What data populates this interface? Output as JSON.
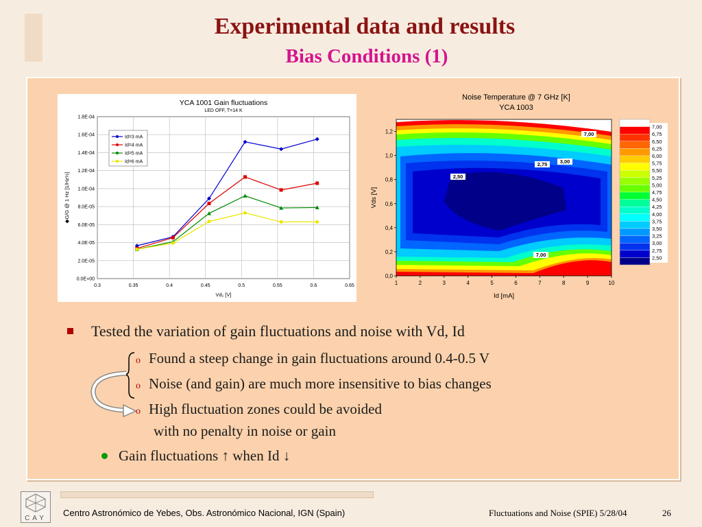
{
  "slide": {
    "title": "Experimental data and results",
    "subtitle": "Bias Conditions (1)"
  },
  "bullets": {
    "main": "Tested the variation of gain fluctuations and noise with Vd, Id",
    "subs": [
      "Found a steep change in gain fluctuations around 0.4-0.5 V",
      "Noise (and gain) are much more insensitive to bias changes",
      "High fluctuation zones could be avoided",
      "with no penalty in noise or gain"
    ],
    "sub_marker": "o",
    "secondary": "Gain fluctuations ↑ when  Id ↓"
  },
  "footer": {
    "left": "Centro Astronómico de Yebes, Obs. Astronómico Nacional, IGN (Spain)",
    "right": "Fluctuations and Noise (SPIE)  5/28/04",
    "page": "26",
    "logo_text": "CAY"
  },
  "chart_data": [
    {
      "type": "line",
      "title": "YCA 1001 Gain fluctuations",
      "subtitle": "LED OFF,  T=14 K",
      "xlabel": "Vd₁ [V]",
      "ylabel": "◆G/G @ 1 Hz [1/Hz½]",
      "x": [
        0.355,
        0.405,
        0.455,
        0.505,
        0.555,
        0.605
      ],
      "xlim": [
        0.3,
        0.65
      ],
      "xticks": [
        "0.3",
        "0.35",
        "0.4",
        "0.45",
        "0.5",
        "0.55",
        "0.6",
        "0.65"
      ],
      "ylim": [
        0,
        0.00018
      ],
      "yticks": [
        "0.0E+00",
        "2.0E-05",
        "4.0E-05",
        "6.0E-05",
        "8.0E-05",
        "1.0E-04",
        "1.2E-04",
        "1.4E-04",
        "1.6E-04",
        "1.8E-04"
      ],
      "legend_position": "top-left",
      "grid": true,
      "series": [
        {
          "name": "Id=3 mA",
          "color": "#0000cc",
          "marker": "diamond",
          "values": [
            3.65e-05,
            4.65e-05,
            8.9e-05,
            0.000152,
            0.000144,
            0.000155
          ]
        },
        {
          "name": "Id=4 mA",
          "color": "#dd0000",
          "marker": "square",
          "values": [
            3.35e-05,
            4.55e-05,
            8.35e-05,
            0.000113,
            9.85e-05,
            0.000106
          ]
        },
        {
          "name": "Id=5 mA",
          "color": "#008800",
          "marker": "triangle",
          "values": [
            3.25e-05,
            4.1e-05,
            7.25e-05,
            9.2e-05,
            7.85e-05,
            7.9e-05
          ]
        },
        {
          "name": "Id=6 mA",
          "color": "#e8e800",
          "marker": "circle",
          "values": [
            3.25e-05,
            3.95e-05,
            6.35e-05,
            7.3e-05,
            6.3e-05,
            6.3e-05
          ]
        }
      ]
    },
    {
      "type": "heatmap",
      "title": "Noise Temperature @ 7 GHz [K]",
      "subtitle": "YCA 1003",
      "xlabel": "Id [mA]",
      "ylabel": "Vds [V]",
      "xlim": [
        1,
        10
      ],
      "ylim": [
        0,
        1.3
      ],
      "xticks": [
        "1",
        "2",
        "3",
        "4",
        "5",
        "6",
        "7",
        "8",
        "9",
        "10"
      ],
      "yticks": [
        "0,0",
        "0,2",
        "0,4",
        "0,6",
        "0,8",
        "1,0",
        "1,2"
      ],
      "contour_labels": [
        "7,00",
        "3,00",
        "2,75",
        "2,50",
        "7,00"
      ],
      "colorbar": [
        {
          "label": "7,00",
          "color": "#ffffff"
        },
        {
          "label": "6,75",
          "color": "#ff0000"
        },
        {
          "label": "6,50",
          "color": "#ff3300"
        },
        {
          "label": "6,25",
          "color": "#ff6600"
        },
        {
          "label": "6,00",
          "color": "#ff9900"
        },
        {
          "label": "5,75",
          "color": "#ffcc00"
        },
        {
          "label": "5,50",
          "color": "#ffff00"
        },
        {
          "label": "5,25",
          "color": "#ccff00"
        },
        {
          "label": "5,00",
          "color": "#99ff00"
        },
        {
          "label": "4,75",
          "color": "#66ff00"
        },
        {
          "label": "4,50",
          "color": "#00ff33"
        },
        {
          "label": "4,25",
          "color": "#00ff99"
        },
        {
          "label": "4,00",
          "color": "#00ffcc"
        },
        {
          "label": "3,75",
          "color": "#00ffff"
        },
        {
          "label": "3,50",
          "color": "#00ccff"
        },
        {
          "label": "3,25",
          "color": "#0099ff"
        },
        {
          "label": "3,00",
          "color": "#0066ff"
        },
        {
          "label": "2,75",
          "color": "#0033ee"
        },
        {
          "label": "2,50",
          "color": "#0000cc"
        },
        {
          "label": "",
          "color": "#000088"
        }
      ]
    }
  ]
}
